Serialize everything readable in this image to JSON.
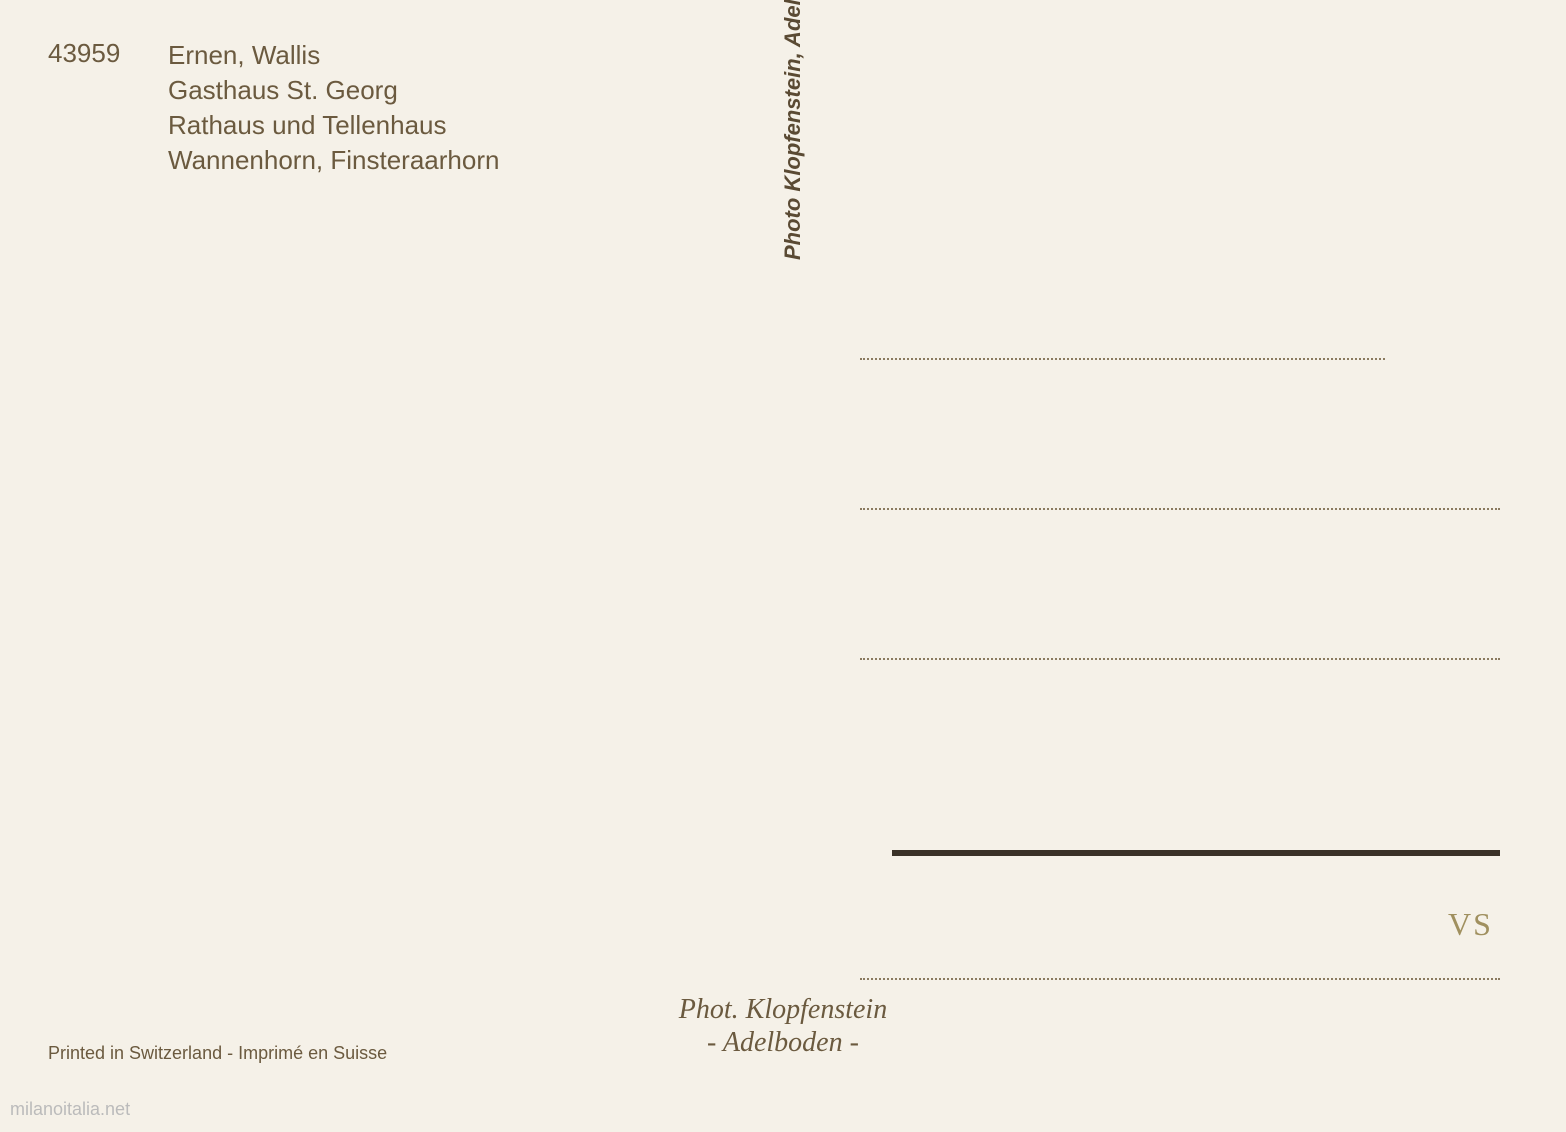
{
  "header": {
    "catalog_number": "43959",
    "line1": "Ernen, Wallis",
    "line2": "Gasthaus St. Georg",
    "line3": "Rathaus und Tellenhaus",
    "line4": "Wannenhorn, Finsteraarhorn"
  },
  "vertical_credit": "Photo Klopfenstein, Adelboden - Reproduktion verboten",
  "signature": {
    "line1": "Phot. Klopfenstein",
    "line2": "- Adelboden -"
  },
  "printed_in": "Printed in Switzerland - Imprimé en Suisse",
  "handwritten_annotation": "VS",
  "watermark": "milanoitalia.net",
  "styling": {
    "background_color": "#f5f1e8",
    "text_color": "#6b5a3f",
    "dotted_line_color": "#8a7a5f",
    "solid_line_color": "#3a3228",
    "annotation_color": "#a0905f",
    "watermark_color": "#bbb",
    "header_fontsize": 26,
    "vertical_fontsize": 22,
    "signature_fontsize": 28,
    "printed_fontsize": 18,
    "address_line_count": 4,
    "address_line_spacing": 148
  }
}
